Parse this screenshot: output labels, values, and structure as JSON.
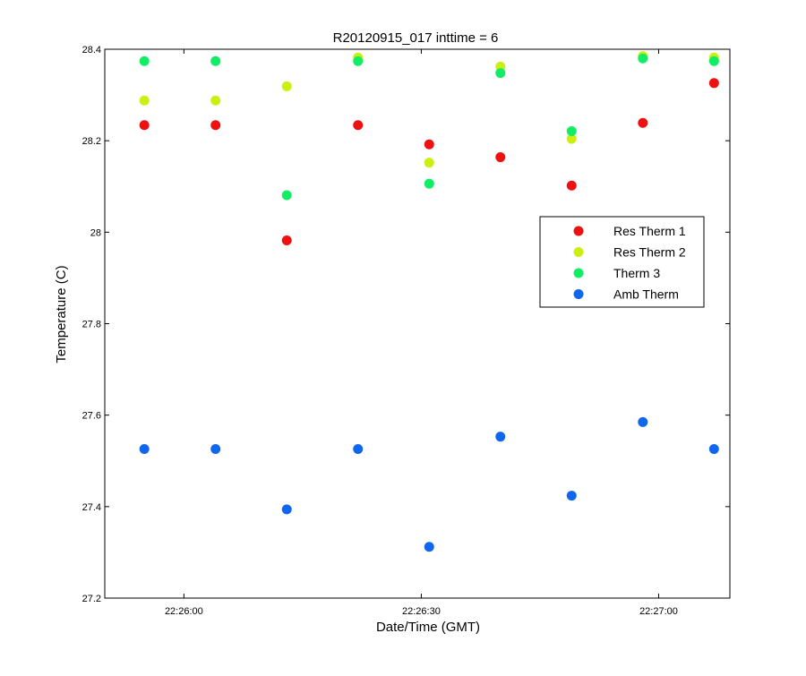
{
  "chart_data": {
    "type": "scatter",
    "title": "R20120915_017 inttime = 6",
    "xlabel": "Date/Time (GMT)",
    "ylabel": "Temperature (C)",
    "xlim": [
      "22:25:50",
      "22:27:09"
    ],
    "ylim": [
      27.2,
      28.4
    ],
    "x_ticks": [
      "22:26:00",
      "22:26:30",
      "22:27:00"
    ],
    "y_ticks": [
      "27.2",
      "27.4",
      "27.6",
      "27.8",
      "28",
      "28.2",
      "28.4"
    ],
    "grid": false,
    "legend_position": "right",
    "x": [
      "22:25:55",
      "22:26:04",
      "22:26:13",
      "22:26:22",
      "22:26:31",
      "22:26:40",
      "22:26:49",
      "22:26:58",
      "22:27:07"
    ],
    "series": [
      {
        "name": "Res Therm 1",
        "color": "#ee1111",
        "values": [
          28.234,
          28.234,
          27.982,
          28.234,
          28.192,
          28.164,
          28.102,
          28.239,
          28.326
        ]
      },
      {
        "name": "Res Therm 2",
        "color": "#ccee11",
        "values": [
          28.288,
          28.288,
          28.319,
          28.382,
          28.152,
          28.362,
          28.204,
          28.385,
          28.382
        ]
      },
      {
        "name": "Therm 3",
        "color": "#11ee66",
        "values": [
          28.374,
          28.374,
          28.081,
          28.374,
          28.106,
          28.348,
          28.221,
          28.38,
          28.374
        ]
      },
      {
        "name": "Amb Therm",
        "color": "#1166ee",
        "values": [
          27.526,
          27.526,
          27.394,
          27.526,
          27.312,
          27.553,
          27.424,
          27.585,
          27.526
        ]
      }
    ]
  }
}
